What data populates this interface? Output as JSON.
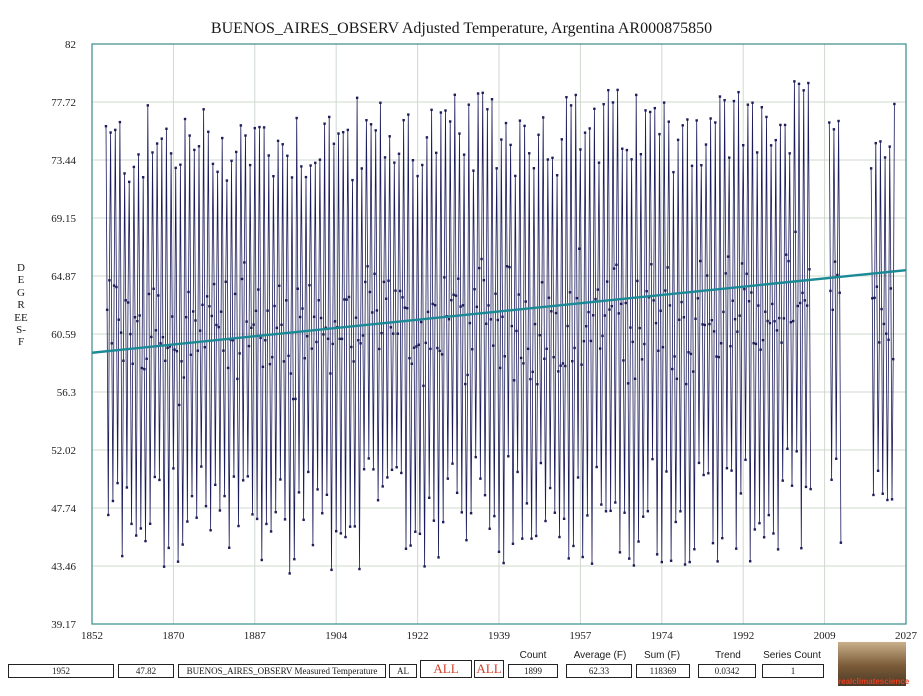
{
  "chart_data": {
    "type": "line",
    "title": "BUENOS_AIRES_OBSERV Adjusted Temperature, Argentina AR000875850",
    "ylabel": "DEGREES-F",
    "xlabel": "",
    "xlim": [
      1852,
      2027
    ],
    "ylim": [
      39.17,
      82
    ],
    "x_ticks": [
      "1852",
      "1870",
      "1887",
      "1904",
      "1922",
      "1939",
      "1957",
      "1974",
      "1992",
      "2009",
      "2027"
    ],
    "y_ticks": [
      "82",
      "77.72",
      "73.44",
      "69.15",
      "64.87",
      "60.59",
      "56.3",
      "52.02",
      "47.74",
      "43.46",
      "39.17"
    ],
    "grid": true,
    "series": [
      {
        "description": "monthly adjusted temperature (seasonal cycle)",
        "color": "#1c1c5a",
        "start_year": 1855.0,
        "segments": [
          [
            1855.0,
            2006.5
          ],
          [
            2010.5,
            2013.0
          ],
          [
            2019.5,
            2024.5
          ]
        ],
        "summer_max_range": [
          71,
          80.5
        ],
        "winter_min_range": [
          42.5,
          51
        ],
        "mean": 62.33
      },
      {
        "description": "trend line",
        "color": "#1a8a96",
        "x": [
          1852,
          2027
        ],
        "y": [
          59.2,
          65.3
        ],
        "slope_per_year": 0.0342
      }
    ]
  },
  "bottom_bar": {
    "year": "1952",
    "value": "47.82",
    "series_name": "BUENOS_AIRES_OBSERV Measured Temperature",
    "state": "AL",
    "all_button_1": "ALL",
    "all_button_2": "ALL",
    "count_label": "Count",
    "count": "1899",
    "average_label": "Average (F)",
    "average": "62.33",
    "sum_label": "Sum (F)",
    "sum": "118369",
    "trend_label": "Trend",
    "trend": "0.0342",
    "series_count_label": "Series Count",
    "series_count": "1"
  },
  "logo": {
    "text": "realclimatescience"
  },
  "colors": {
    "data_line": "#1c1c5a",
    "trend_line": "#1a8a96",
    "frame": "#3a8a8a",
    "grid": "#cfd8cf"
  }
}
